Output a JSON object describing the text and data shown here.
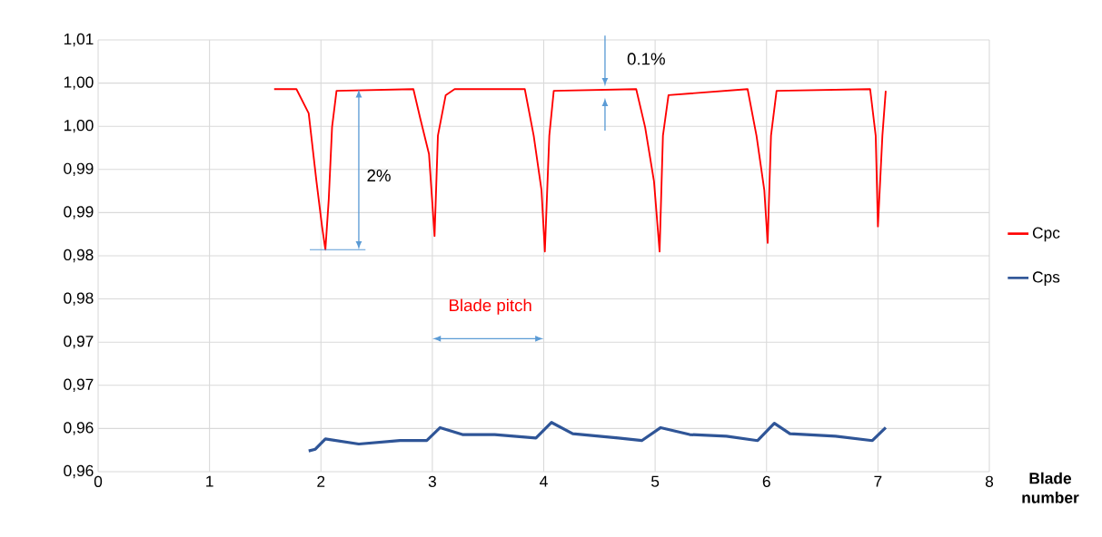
{
  "chart_data": {
    "type": "line",
    "xlabel": "Blade number",
    "xlim": [
      0,
      8
    ],
    "xticks": [
      0,
      1,
      2,
      3,
      4,
      5,
      6,
      7,
      8
    ],
    "ylim": [
      0.96,
      1.01
    ],
    "yticks": [
      {
        "value": 0.96,
        "label": "0,96"
      },
      {
        "value": 0.965,
        "label": "0,96"
      },
      {
        "value": 0.97,
        "label": "0,97"
      },
      {
        "value": 0.975,
        "label": "0,97"
      },
      {
        "value": 0.98,
        "label": "0,98"
      },
      {
        "value": 0.985,
        "label": "0,98"
      },
      {
        "value": 0.99,
        "label": "0,99"
      },
      {
        "value": 0.995,
        "label": "0,99"
      },
      {
        "value": 1.0,
        "label": "1,00"
      },
      {
        "value": 1.005,
        "label": "1,00"
      },
      {
        "value": 1.01,
        "label": "1,01"
      }
    ],
    "grid": true,
    "legend": "right",
    "marker": "none",
    "line_style": "solid",
    "annotations": [
      "2%",
      "0.1%",
      "Blade pitch"
    ],
    "series": [
      {
        "name": "Cpc",
        "color": "#ff0000",
        "x": [
          1.58,
          1.78,
          1.89,
          1.96,
          2.01,
          2.04,
          2.07,
          2.1,
          2.14,
          2.83,
          2.89,
          2.97,
          3.02,
          3.05,
          3.12,
          3.2,
          3.83,
          3.91,
          3.98,
          4.01,
          4.05,
          4.09,
          4.83,
          4.91,
          4.99,
          5.04,
          5.07,
          5.12,
          5.83,
          5.91,
          5.98,
          6.01,
          6.04,
          6.09,
          6.93,
          6.98,
          7.0,
          7.04,
          7.07
        ],
        "values": [
          1.0043,
          1.0043,
          1.0015,
          0.9936,
          0.9884,
          0.9857,
          0.9915,
          0.9999,
          1.0041,
          1.0043,
          1.001,
          0.9968,
          0.9873,
          0.9989,
          1.0036,
          1.0043,
          1.0043,
          0.9989,
          0.9926,
          0.9855,
          0.9989,
          1.0041,
          1.0043,
          0.9999,
          0.9936,
          0.9855,
          0.9989,
          1.0036,
          1.0043,
          0.9989,
          0.9926,
          0.9865,
          0.9989,
          1.0041,
          1.0043,
          0.9989,
          0.9884,
          0.9989,
          1.0041
        ]
      },
      {
        "name": "Cps",
        "color": "#2f5597",
        "x": [
          1.89,
          1.95,
          2.04,
          2.34,
          2.71,
          2.95,
          3.07,
          3.27,
          3.56,
          3.93,
          4.07,
          4.26,
          4.67,
          4.88,
          5.05,
          5.31,
          5.64,
          5.92,
          6.07,
          6.21,
          6.62,
          6.95,
          7.07
        ],
        "values": [
          0.9624,
          0.9626,
          0.9638,
          0.9632,
          0.9636,
          0.9636,
          0.9651,
          0.9643,
          0.9643,
          0.9639,
          0.9657,
          0.9644,
          0.9639,
          0.9636,
          0.9651,
          0.9643,
          0.9641,
          0.9636,
          0.9656,
          0.9644,
          0.9641,
          0.9636,
          0.9651
        ]
      },
      {
        "type": "line",
        "color": "#5b9bd5",
        "x": [
          1.9,
          2.4
        ],
        "values": [
          0.9857,
          0.9857
        ]
      }
    ]
  }
}
